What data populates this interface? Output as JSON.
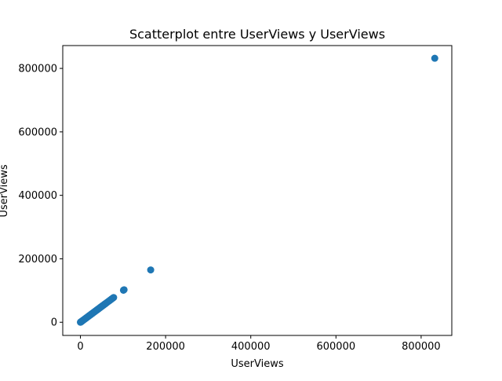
{
  "chart_data": {
    "type": "scatter",
    "title": "Scatterplot entre UserViews y UserViews",
    "xlabel": "UserViews",
    "ylabel": "UserViews",
    "xlim": [
      -41500,
      872000
    ],
    "ylim": [
      -41500,
      872000
    ],
    "xticks": [
      0,
      200000,
      400000,
      600000,
      800000
    ],
    "xtick_labels": [
      "0",
      "200000",
      "400000",
      "600000",
      "800000"
    ],
    "yticks": [
      0,
      200000,
      400000,
      600000,
      800000
    ],
    "ytick_labels": [
      "0",
      "200000",
      "400000",
      "600000",
      "800000"
    ],
    "grid": false,
    "legend": "none",
    "marker_color": "#1f77b4",
    "points": [
      {
        "x": 0,
        "y": 0
      },
      {
        "x": 500,
        "y": 500
      },
      {
        "x": 1000,
        "y": 1000
      },
      {
        "x": 1500,
        "y": 1500
      },
      {
        "x": 2000,
        "y": 2000
      },
      {
        "x": 2500,
        "y": 2500
      },
      {
        "x": 3000,
        "y": 3000
      },
      {
        "x": 3500,
        "y": 3500
      },
      {
        "x": 4000,
        "y": 4000
      },
      {
        "x": 5000,
        "y": 5000
      },
      {
        "x": 6000,
        "y": 6000
      },
      {
        "x": 7000,
        "y": 7000
      },
      {
        "x": 8000,
        "y": 8000
      },
      {
        "x": 9000,
        "y": 9000
      },
      {
        "x": 10000,
        "y": 10000
      },
      {
        "x": 11000,
        "y": 11000
      },
      {
        "x": 12000,
        "y": 12000
      },
      {
        "x": 13000,
        "y": 13000
      },
      {
        "x": 14000,
        "y": 14000
      },
      {
        "x": 15000,
        "y": 15000
      },
      {
        "x": 16000,
        "y": 16000
      },
      {
        "x": 17000,
        "y": 17000
      },
      {
        "x": 18000,
        "y": 18000
      },
      {
        "x": 19000,
        "y": 19000
      },
      {
        "x": 20000,
        "y": 20000
      },
      {
        "x": 21000,
        "y": 21000
      },
      {
        "x": 22000,
        "y": 22000
      },
      {
        "x": 23000,
        "y": 23000
      },
      {
        "x": 24000,
        "y": 24000
      },
      {
        "x": 25000,
        "y": 25000
      },
      {
        "x": 26000,
        "y": 26000
      },
      {
        "x": 27000,
        "y": 27000
      },
      {
        "x": 28000,
        "y": 28000
      },
      {
        "x": 29000,
        "y": 29000
      },
      {
        "x": 30000,
        "y": 30000
      },
      {
        "x": 31000,
        "y": 31000
      },
      {
        "x": 32000,
        "y": 32000
      },
      {
        "x": 33000,
        "y": 33000
      },
      {
        "x": 34000,
        "y": 34000
      },
      {
        "x": 35000,
        "y": 35000
      },
      {
        "x": 36000,
        "y": 36000
      },
      {
        "x": 37000,
        "y": 37000
      },
      {
        "x": 38000,
        "y": 38000
      },
      {
        "x": 39000,
        "y": 39000
      },
      {
        "x": 40000,
        "y": 40000
      },
      {
        "x": 41000,
        "y": 41000
      },
      {
        "x": 42000,
        "y": 42000
      },
      {
        "x": 43000,
        "y": 43000
      },
      {
        "x": 44000,
        "y": 44000
      },
      {
        "x": 45000,
        "y": 45000
      },
      {
        "x": 46000,
        "y": 46000
      },
      {
        "x": 47000,
        "y": 47000
      },
      {
        "x": 48000,
        "y": 48000
      },
      {
        "x": 49000,
        "y": 49000
      },
      {
        "x": 50000,
        "y": 50000
      },
      {
        "x": 51000,
        "y": 51000
      },
      {
        "x": 52000,
        "y": 52000
      },
      {
        "x": 53000,
        "y": 53000
      },
      {
        "x": 54000,
        "y": 54000
      },
      {
        "x": 55000,
        "y": 55000
      },
      {
        "x": 56000,
        "y": 56000
      },
      {
        "x": 57000,
        "y": 57000
      },
      {
        "x": 58000,
        "y": 58000
      },
      {
        "x": 59000,
        "y": 59000
      },
      {
        "x": 60000,
        "y": 60000
      },
      {
        "x": 62000,
        "y": 62000
      },
      {
        "x": 64000,
        "y": 64000
      },
      {
        "x": 66000,
        "y": 66000
      },
      {
        "x": 68000,
        "y": 68000
      },
      {
        "x": 70000,
        "y": 70000
      },
      {
        "x": 72000,
        "y": 72000
      },
      {
        "x": 74000,
        "y": 74000
      },
      {
        "x": 76000,
        "y": 76000
      },
      {
        "x": 78000,
        "y": 78000
      },
      {
        "x": 101000,
        "y": 101000
      },
      {
        "x": 102500,
        "y": 102500
      },
      {
        "x": 165000,
        "y": 165000
      },
      {
        "x": 832000,
        "y": 832000
      }
    ]
  }
}
